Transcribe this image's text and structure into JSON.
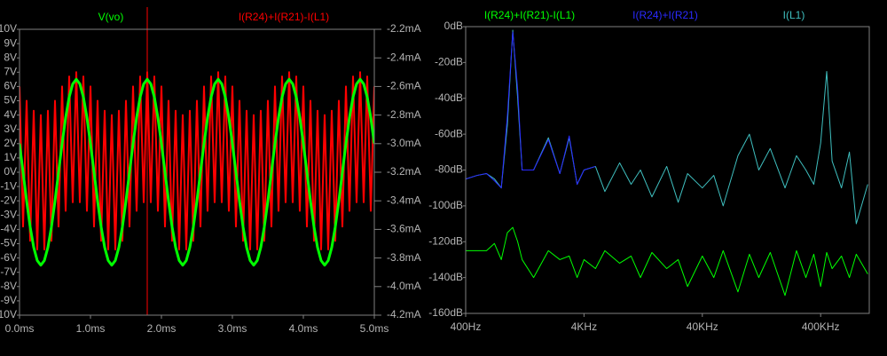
{
  "chart_data": [
    {
      "type": "line",
      "x": [
        0,
        0.05,
        0.1,
        0.15,
        0.2,
        0.25,
        0.3,
        0.35,
        0.4,
        0.45,
        0.5,
        0.55,
        0.6,
        0.65,
        0.7,
        0.75,
        0.8,
        0.85,
        0.9,
        0.95,
        1,
        1.05,
        1.1,
        1.15,
        1.2,
        1.25,
        1.3,
        1.35,
        1.4,
        1.45,
        1.5,
        1.55,
        1.6,
        1.65,
        1.7,
        1.75,
        1.8,
        1.85,
        1.9,
        1.95,
        2,
        2.05,
        2.1,
        2.15,
        2.2,
        2.25,
        2.3,
        2.35,
        2.4,
        2.45,
        2.5,
        2.55,
        2.6,
        2.65,
        2.7,
        2.75,
        2.8,
        2.85,
        2.9,
        2.95,
        3,
        3.05,
        3.1,
        3.15,
        3.2,
        3.25,
        3.3,
        3.35,
        3.4,
        3.45,
        3.5,
        3.55,
        3.6,
        3.65,
        3.7,
        3.75,
        3.8,
        3.85,
        3.9,
        3.95,
        4,
        4.05,
        4.1,
        4.15,
        4.2,
        4.25,
        4.3,
        4.35,
        4.4,
        4.45,
        4.5,
        4.55,
        4.6,
        4.65,
        4.7,
        4.75,
        4.8,
        4.85,
        4.9,
        4.95,
        5
      ],
      "xlim": [
        0,
        5
      ],
      "xticks": [
        {
          "value": 0,
          "label": "0.0ms"
        },
        {
          "value": 1,
          "label": "1.0ms"
        },
        {
          "value": 2,
          "label": "2.0ms"
        },
        {
          "value": 3,
          "label": "3.0ms"
        },
        {
          "value": 4,
          "label": "4.0ms"
        },
        {
          "value": 5,
          "label": "5.0ms"
        }
      ],
      "ylim": [
        -10,
        10
      ],
      "yticks": [
        {
          "value": 10,
          "label": "10V"
        },
        {
          "value": 9,
          "label": "9V"
        },
        {
          "value": 8,
          "label": "8V"
        },
        {
          "value": 7,
          "label": "7V"
        },
        {
          "value": 6,
          "label": "6V"
        },
        {
          "value": 5,
          "label": "5V"
        },
        {
          "value": 4,
          "label": "4V"
        },
        {
          "value": 3,
          "label": "3V"
        },
        {
          "value": 2,
          "label": "2V"
        },
        {
          "value": 1,
          "label": "1V"
        },
        {
          "value": 0,
          "label": "0V"
        },
        {
          "value": -1,
          "label": "-1V"
        },
        {
          "value": -2,
          "label": "-2V"
        },
        {
          "value": -3,
          "label": "-3V"
        },
        {
          "value": -4,
          "label": "-4V"
        },
        {
          "value": -5,
          "label": "-5V"
        },
        {
          "value": -6,
          "label": "-6V"
        },
        {
          "value": -7,
          "label": "-7V"
        },
        {
          "value": -8,
          "label": "-8V"
        },
        {
          "value": -9,
          "label": "-9V"
        },
        {
          "value": -10,
          "label": "-10V"
        }
      ],
      "y2lim": [
        -4.2,
        -2.2
      ],
      "y2ticks": [
        {
          "value": -2.2,
          "label": "-2.2mA"
        },
        {
          "value": -2.4,
          "label": "-2.4mA"
        },
        {
          "value": -2.6,
          "label": "-2.6mA"
        },
        {
          "value": -2.8,
          "label": "-2.8mA"
        },
        {
          "value": -3.0,
          "label": "-3.0mA"
        },
        {
          "value": -3.2,
          "label": "-3.2mA"
        },
        {
          "value": -3.4,
          "label": "-3.4mA"
        },
        {
          "value": -3.6,
          "label": "-3.6mA"
        },
        {
          "value": -3.8,
          "label": "-3.8mA"
        },
        {
          "value": -4.0,
          "label": "-4.0mA"
        },
        {
          "value": -4.2,
          "label": "-4.2mA"
        }
      ],
      "grid": false,
      "series": [
        {
          "name": "I(R24)+I(R21)-I(L1)",
          "color": "#ff0000",
          "axis": "y2",
          "values": [
            -2.6,
            -3.58,
            -2.7,
            -3.68,
            -2.77,
            -3.74,
            -2.8,
            -3.74,
            -2.77,
            -3.68,
            -2.7,
            -3.58,
            -2.6,
            -3.47,
            -2.53,
            -3.41,
            -2.5,
            -3.41,
            -2.53,
            -3.47,
            -2.6,
            -3.58,
            -2.7,
            -3.68,
            -2.77,
            -3.74,
            -2.8,
            -3.74,
            -2.77,
            -3.68,
            -2.7,
            -3.58,
            -2.6,
            -3.47,
            -2.53,
            -3.41,
            -2.5,
            -3.41,
            -2.53,
            -3.47,
            -2.6,
            -3.58,
            -2.7,
            -3.68,
            -2.77,
            -3.74,
            -2.8,
            -3.74,
            -2.77,
            -3.68,
            -2.7,
            -3.58,
            -2.6,
            -3.47,
            -2.53,
            -3.41,
            -2.5,
            -3.41,
            -2.53,
            -3.47,
            -2.6,
            -3.58,
            -2.7,
            -3.68,
            -2.77,
            -3.74,
            -2.8,
            -3.74,
            -2.77,
            -3.68,
            -2.7,
            -3.58,
            -2.6,
            -3.47,
            -2.53,
            -3.41,
            -2.5,
            -3.41,
            -2.53,
            -3.47,
            -2.6,
            -3.58,
            -2.7,
            -3.68,
            -2.77,
            -3.74,
            -2.8,
            -3.74,
            -2.77,
            -3.68,
            -2.7,
            -3.58,
            -2.6,
            -3.47,
            -2.53,
            -3.41,
            -2.5,
            -3.41,
            -2.53,
            -3.47,
            -2.6
          ]
        },
        {
          "name": "V(vo)",
          "color": "#00ff00",
          "values": [
            2.01,
            0,
            -2.01,
            -3.82,
            -5.26,
            -6.18,
            -6.5,
            -6.18,
            -5.26,
            -3.82,
            -2.01,
            0,
            2.01,
            3.82,
            5.26,
            6.18,
            6.5,
            6.18,
            5.26,
            3.82,
            2.01,
            0,
            -2.01,
            -3.82,
            -5.26,
            -6.18,
            -6.5,
            -6.18,
            -5.26,
            -3.82,
            -2.01,
            0,
            2.01,
            3.82,
            5.26,
            6.18,
            6.5,
            6.18,
            5.26,
            3.82,
            2.01,
            0,
            -2.01,
            -3.82,
            -5.26,
            -6.18,
            -6.5,
            -6.18,
            -5.26,
            -3.82,
            -2.01,
            0,
            2.01,
            3.82,
            5.26,
            6.18,
            6.5,
            6.18,
            5.26,
            3.82,
            2.01,
            0,
            -2.01,
            -3.82,
            -5.26,
            -6.18,
            -6.5,
            -6.18,
            -5.26,
            -3.82,
            -2.01,
            0,
            2.01,
            3.82,
            5.26,
            6.18,
            6.5,
            6.18,
            5.26,
            3.82,
            2.01,
            0,
            -2.01,
            -3.82,
            -5.26,
            -6.18,
            -6.5,
            -6.18,
            -5.26,
            -3.82,
            -2.01,
            0,
            2.01,
            3.82,
            5.26,
            6.18,
            6.5,
            6.18,
            5.26,
            3.82,
            2.01
          ]
        }
      ]
    },
    {
      "type": "line",
      "x": [
        400,
        500,
        600,
        700,
        800,
        900,
        1000,
        1100,
        1200,
        1500,
        2000,
        2500,
        3000,
        3500,
        4000,
        5000,
        6000,
        8000,
        10000,
        12000,
        15000,
        20000,
        25000,
        30000,
        40000,
        50000,
        60000,
        80000,
        100000,
        120000,
        150000,
        200000,
        250000,
        300000,
        350000,
        400000,
        450000,
        500000,
        600000,
        700000,
        800000,
        1000000
      ],
      "log_x": true,
      "xlim": [
        400,
        1030000
      ],
      "xticks": [
        {
          "value": 400,
          "label": "400Hz"
        },
        {
          "value": 4000,
          "label": "4KHz"
        },
        {
          "value": 40000,
          "label": "40KHz"
        },
        {
          "value": 400000,
          "label": "400KHz"
        }
      ],
      "ylim": [
        -160,
        0
      ],
      "yticks": [
        {
          "value": 0,
          "label": "0dB"
        },
        {
          "value": -20,
          "label": "-20dB"
        },
        {
          "value": -40,
          "label": "-40dB"
        },
        {
          "value": -60,
          "label": "-60dB"
        },
        {
          "value": -80,
          "label": "-80dB"
        },
        {
          "value": -100,
          "label": "-100dB"
        },
        {
          "value": -120,
          "label": "-120dB"
        },
        {
          "value": -140,
          "label": "-140dB"
        },
        {
          "value": -160,
          "label": "-160dB"
        }
      ],
      "grid": false,
      "series": [
        {
          "name": "I(R24)+I(R21)-I(L1)",
          "color": "#00ff00",
          "values": [
            -125,
            -125,
            -125,
            -121,
            -130,
            -115,
            -112,
            -120,
            -130,
            -140,
            -125,
            -130,
            -128,
            -140,
            -130,
            -135,
            -125,
            -132,
            -128,
            -140,
            -126,
            -135,
            -130,
            -145,
            -128,
            -140,
            -125,
            -148,
            -127,
            -140,
            -126,
            -150,
            -125,
            -140,
            -127,
            -145,
            -126,
            -135,
            -128,
            -140,
            -127,
            -138
          ]
        },
        {
          "name": "I(L1)",
          "color": "#3fbfbf",
          "values": [
            -85,
            -83,
            -82,
            -85,
            -90,
            -55,
            -2,
            -40,
            -80,
            -80,
            -62,
            -82,
            -62,
            -88,
            -80,
            -78,
            -92,
            -76,
            -88,
            -80,
            -95,
            -78,
            -98,
            -82,
            -90,
            -83,
            -100,
            -72,
            -60,
            -80,
            -68,
            -90,
            -72,
            -80,
            -88,
            -65,
            -25,
            -75,
            -90,
            -70,
            -110,
            -88
          ]
        },
        {
          "name": "I(R24)+I(R21)",
          "color": "#2a2aff",
          "values": [
            -85,
            -83,
            -82,
            -86,
            -90,
            -50,
            -3,
            -35,
            -80,
            -80,
            -63,
            -82,
            -61,
            -88,
            -80,
            -78,
            null,
            null,
            null,
            null,
            null,
            null,
            null,
            null,
            null,
            null,
            null,
            null,
            null,
            null,
            null,
            null,
            null,
            null,
            null,
            null,
            null,
            null,
            null,
            null,
            null,
            null
          ]
        }
      ]
    }
  ]
}
